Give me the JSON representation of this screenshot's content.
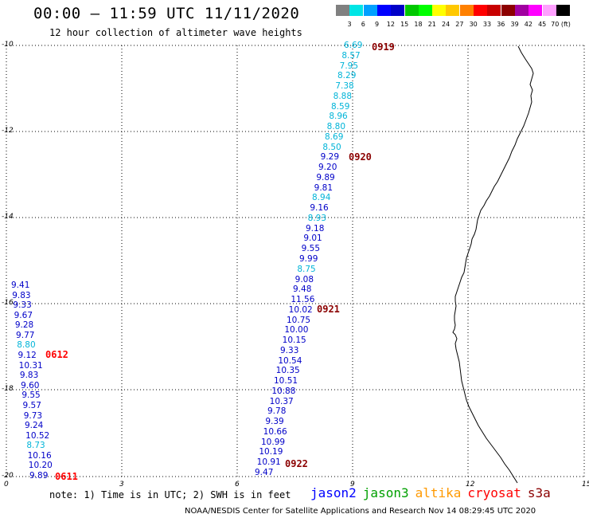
{
  "title": "00:00 – 11:59 UTC 11/11/2020",
  "subtitle": "12 hour collection of altimeter wave heights",
  "color_scale": {
    "colors": [
      "#808080",
      "#00e5e5",
      "#00a0ff",
      "#0000ff",
      "#0000c8",
      "#00c800",
      "#00ff00",
      "#ffff00",
      "#ffc800",
      "#ff8000",
      "#ff0000",
      "#c80000",
      "#8c0000",
      "#a000a0",
      "#ff00ff",
      "#ffa0ff",
      "#000000"
    ],
    "labels": [
      "3",
      "6",
      "9",
      "12",
      "15",
      "18",
      "21",
      "24",
      "27",
      "30",
      "33",
      "36",
      "39",
      "42",
      "45",
      "70 (ft)"
    ]
  },
  "axes": {
    "y_ticks": [
      "-10",
      "-12",
      "-14",
      "-16",
      "-18",
      "-20"
    ],
    "x_ticks": [
      "0",
      "3",
      "6",
      "9",
      "12",
      "15"
    ]
  },
  "tracks": {
    "track1": [
      "6.69",
      "8.57",
      "7.95",
      "8.29",
      "7.38",
      "8.88",
      "8.59",
      "8.96",
      "8.80",
      "8.69",
      "8.50",
      "9.29",
      "9.20",
      "9.89",
      "9.81",
      "8.94",
      "9.16",
      "8.93",
      "9.18",
      "9.01",
      "9.55",
      "9.99",
      "8.75",
      "9.08",
      "9.48",
      "11.56",
      "10.02",
      "10.75",
      "10.00",
      "10.15",
      "9.33",
      "10.54",
      "10.35",
      "10.51",
      "10.88",
      "10.37",
      "9.78",
      "9.39",
      "10.66",
      "10.99",
      "10.19",
      "10.91",
      "9.47"
    ],
    "track1_colors": [
      "c",
      "c",
      "c",
      "c",
      "c",
      "c",
      "c",
      "c",
      "c",
      "c",
      "c",
      "b",
      "b",
      "b",
      "b",
      "c",
      "b",
      "c",
      "b",
      "b",
      "b",
      "b",
      "c",
      "b",
      "b",
      "b",
      "b",
      "b",
      "b",
      "b",
      "b",
      "b",
      "b",
      "b",
      "b",
      "b",
      "b",
      "b",
      "b",
      "b",
      "b",
      "b",
      "b"
    ],
    "track2": [
      "9.41",
      "9.83",
      "9.33",
      "9.67",
      "9.28",
      "9.77",
      "8.80",
      "9.12",
      "10.31",
      "9.83",
      "9.60",
      "9.55",
      "9.57",
      "9.73",
      "9.24",
      "10.52",
      "8.73",
      "10.16",
      "10.20",
      "9.89"
    ],
    "track2_colors": [
      "b",
      "b",
      "b",
      "b",
      "b",
      "b",
      "c",
      "b",
      "b",
      "b",
      "b",
      "b",
      "b",
      "b",
      "b",
      "b",
      "c",
      "b",
      "b",
      "b"
    ]
  },
  "time_labels": {
    "t0919": "0919",
    "t0920": "0920",
    "t0921": "0921",
    "t0922": "0922",
    "t0612": "0612",
    "t0611": "0611"
  },
  "note": "note: 1) Time is in UTC; 2) SWH is in feet",
  "legend": {
    "jason2": "jason2",
    "jason3": "jason3",
    "altika": "altika",
    "cryosat": "cryosat",
    "s3a": "s3a",
    "colors": {
      "jason2": "#0000ff",
      "jason3": "#00a000",
      "altika": "#ff9900",
      "cryosat": "#ff0000",
      "s3a": "#8b0000"
    }
  },
  "footer": "NOAA/NESDIS Center for Satellite Applications and Research    Nov 14 08:29:45 UTC 2020"
}
